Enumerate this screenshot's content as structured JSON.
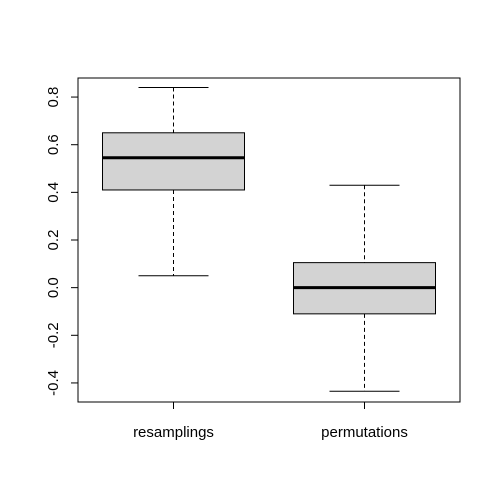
{
  "chart_data": {
    "type": "boxplot",
    "title": "",
    "xlabel": "",
    "ylabel": "",
    "ylim": [
      -0.48,
      0.88
    ],
    "y_ticks": [
      -0.4,
      -0.2,
      0.0,
      0.2,
      0.4,
      0.6,
      0.8
    ],
    "y_tick_labels": [
      "-0.4",
      "-0.2",
      "0.0",
      "0.2",
      "0.4",
      "0.6",
      "0.8"
    ],
    "categories": [
      "resamplings",
      "permutations"
    ],
    "boxes": [
      {
        "category": "resamplings",
        "whisker_low": 0.05,
        "q1": 0.41,
        "median": 0.545,
        "q3": 0.65,
        "whisker_high": 0.84
      },
      {
        "category": "permutations",
        "whisker_low": -0.435,
        "q1": -0.11,
        "median": 0.0,
        "q3": 0.105,
        "whisker_high": 0.43
      }
    ],
    "box_fill": "#d3d3d3",
    "line_color": "#000000",
    "grid": false,
    "legend": "none"
  }
}
